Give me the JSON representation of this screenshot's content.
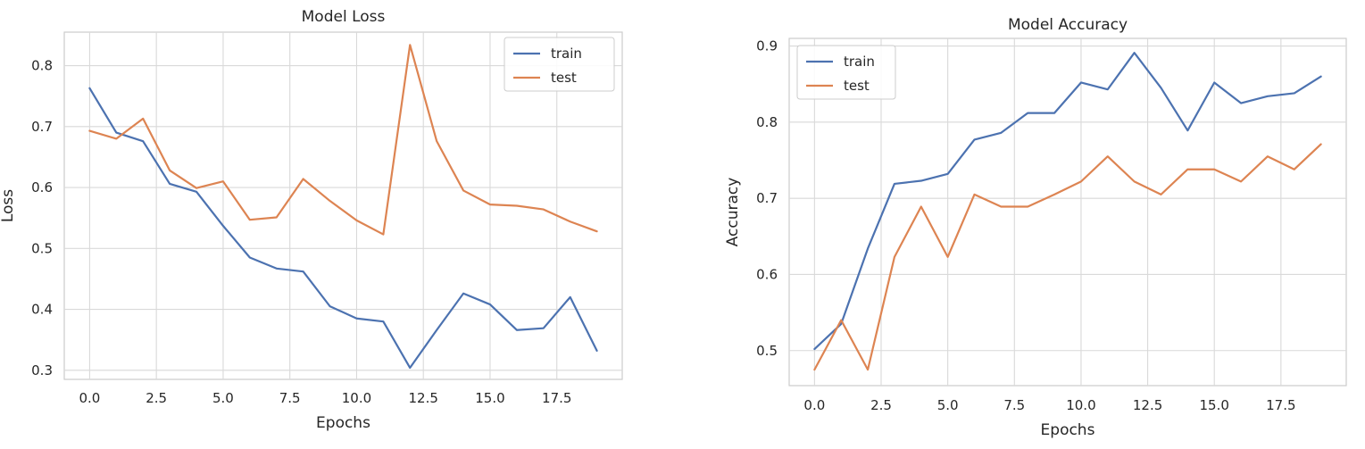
{
  "chart_data": [
    {
      "type": "line",
      "title": "Model Loss",
      "xlabel": "Epochs",
      "ylabel": "Loss",
      "x": [
        0,
        1,
        2,
        3,
        4,
        5,
        6,
        7,
        8,
        9,
        10,
        11,
        12,
        13,
        14,
        15,
        16,
        17,
        18,
        19
      ],
      "xlim": [
        -0.95,
        19.95
      ],
      "ylim": [
        0.285,
        0.855
      ],
      "xticks": [
        0.0,
        2.5,
        5.0,
        7.5,
        10.0,
        12.5,
        15.0,
        17.5
      ],
      "xtick_labels": [
        "0.0",
        "2.5",
        "5.0",
        "7.5",
        "10.0",
        "12.5",
        "15.0",
        "17.5"
      ],
      "yticks": [
        0.3,
        0.4,
        0.5,
        0.6,
        0.7,
        0.8
      ],
      "ytick_labels": [
        "0.3",
        "0.4",
        "0.5",
        "0.6",
        "0.7",
        "0.8"
      ],
      "grid": true,
      "legend_position": "top-right",
      "series": [
        {
          "name": "train",
          "color": "#4c72b0",
          "values": [
            0.763,
            0.69,
            0.676,
            0.606,
            0.593,
            0.537,
            0.485,
            0.467,
            0.462,
            0.405,
            0.385,
            0.38,
            0.304,
            0.366,
            0.426,
            0.408,
            0.366,
            0.369,
            0.42,
            0.332
          ]
        },
        {
          "name": "test",
          "color": "#dd8452",
          "values": [
            0.693,
            0.68,
            0.713,
            0.628,
            0.599,
            0.61,
            0.547,
            0.551,
            0.614,
            0.578,
            0.546,
            0.523,
            0.834,
            0.676,
            0.595,
            0.572,
            0.57,
            0.564,
            0.544,
            0.528
          ]
        }
      ]
    },
    {
      "type": "line",
      "title": "Model Accuracy",
      "xlabel": "Epochs",
      "ylabel": "Accuracy",
      "x": [
        0,
        1,
        2,
        3,
        4,
        5,
        6,
        7,
        8,
        9,
        10,
        11,
        12,
        13,
        14,
        15,
        16,
        17,
        18,
        19
      ],
      "xlim": [
        -0.95,
        19.95
      ],
      "ylim": [
        0.454,
        0.91
      ],
      "xticks": [
        0.0,
        2.5,
        5.0,
        7.5,
        10.0,
        12.5,
        15.0,
        17.5
      ],
      "xtick_labels": [
        "0.0",
        "2.5",
        "5.0",
        "7.5",
        "10.0",
        "12.5",
        "15.0",
        "17.5"
      ],
      "yticks": [
        0.5,
        0.6,
        0.7,
        0.8,
        0.9
      ],
      "ytick_labels": [
        "0.5",
        "0.6",
        "0.7",
        "0.8",
        "0.9"
      ],
      "grid": true,
      "legend_position": "top-left",
      "series": [
        {
          "name": "train",
          "color": "#4c72b0",
          "values": [
            0.502,
            0.535,
            0.634,
            0.719,
            0.723,
            0.732,
            0.777,
            0.786,
            0.812,
            0.812,
            0.852,
            0.843,
            0.891,
            0.845,
            0.789,
            0.852,
            0.825,
            0.834,
            0.838,
            0.86
          ]
        },
        {
          "name": "test",
          "color": "#dd8452",
          "values": [
            0.475,
            0.54,
            0.475,
            0.623,
            0.689,
            0.623,
            0.705,
            0.689,
            0.689,
            0.705,
            0.722,
            0.755,
            0.722,
            0.705,
            0.738,
            0.738,
            0.722,
            0.755,
            0.738,
            0.771
          ]
        }
      ]
    }
  ]
}
